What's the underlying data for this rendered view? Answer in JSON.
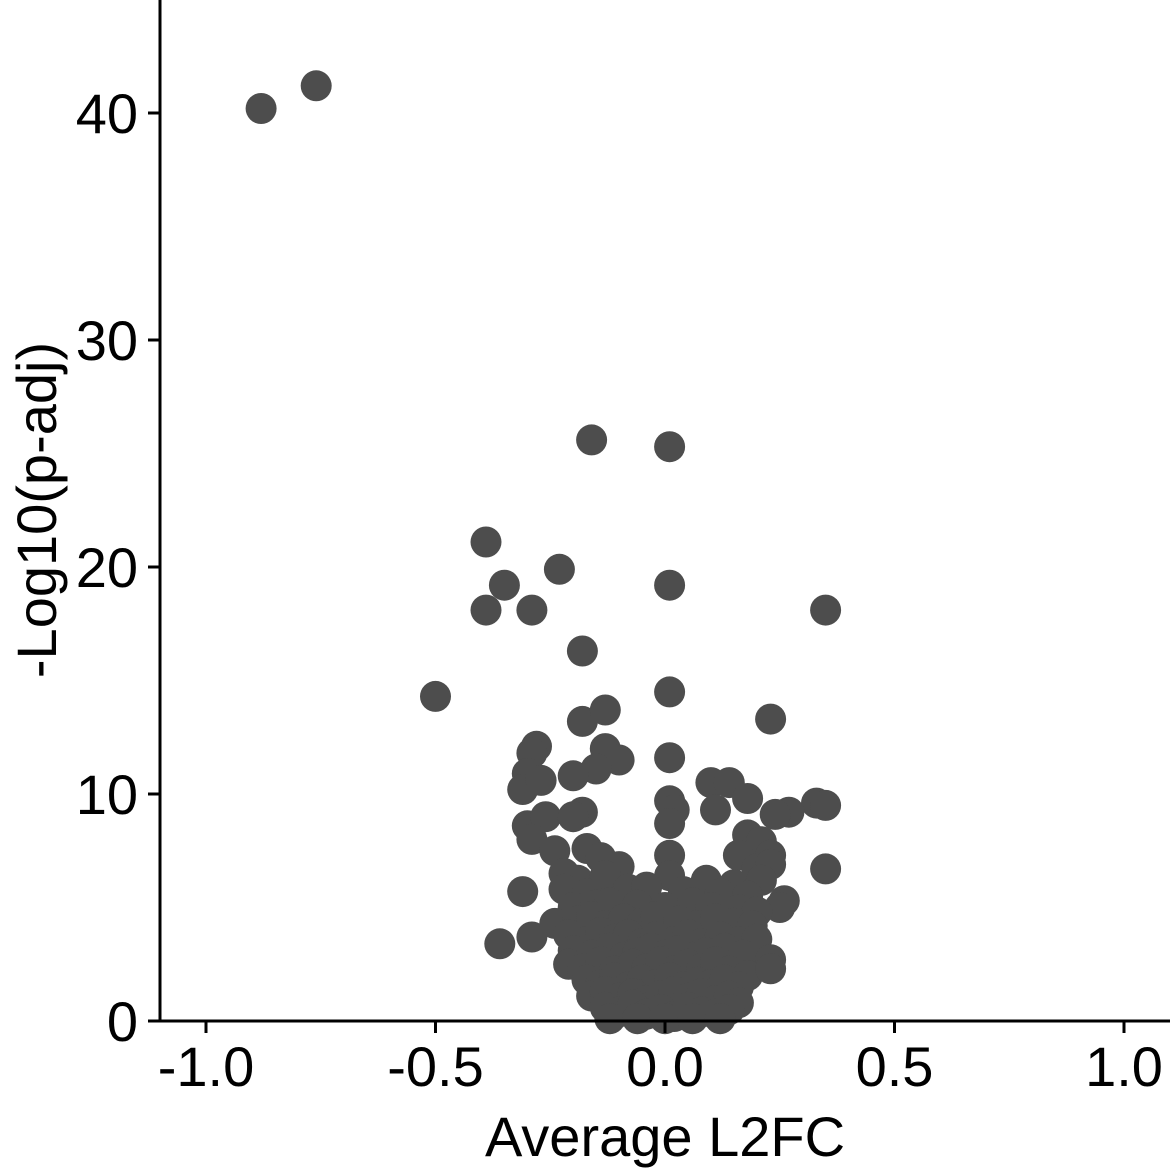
{
  "chart_data": {
    "type": "scatter",
    "title": "",
    "xlabel": "Average L2FC",
    "ylabel": "-Log10(p-adj)",
    "xlim": [
      -1.1,
      1.1
    ],
    "ylim": [
      0,
      45
    ],
    "xticks": [
      -1.0,
      -0.5,
      0.0,
      0.5,
      1.0
    ],
    "xtick_labels": [
      "-1.0",
      "-0.5",
      "0.0",
      "0.5",
      "1.0"
    ],
    "yticks": [
      0,
      10,
      20,
      30,
      40
    ],
    "ytick_labels": [
      "0",
      "10",
      "20",
      "30",
      "40"
    ],
    "grid": false,
    "legend": "none",
    "point_color": "#4d4d4d",
    "axis_color": "#000000",
    "series": [
      {
        "points": [
          [
            -0.88,
            40.2
          ],
          [
            -0.76,
            41.2
          ],
          [
            -0.16,
            25.6
          ],
          [
            0.01,
            25.3
          ],
          [
            -0.39,
            21.1
          ],
          [
            -0.35,
            19.2
          ],
          [
            -0.23,
            19.9
          ],
          [
            -0.39,
            18.1
          ],
          [
            -0.29,
            18.1
          ],
          [
            0.01,
            19.2
          ],
          [
            0.35,
            18.1
          ],
          [
            -0.18,
            16.3
          ],
          [
            -0.5,
            14.3
          ],
          [
            0.01,
            14.5
          ],
          [
            0.23,
            13.3
          ],
          [
            -0.18,
            13.2
          ],
          [
            -0.13,
            13.7
          ],
          [
            -0.28,
            12.1
          ],
          [
            -0.29,
            11.8
          ],
          [
            -0.13,
            12.0
          ],
          [
            -0.1,
            11.5
          ],
          [
            -0.15,
            11.1
          ],
          [
            0.01,
            11.6
          ],
          [
            -0.2,
            10.8
          ],
          [
            -0.3,
            10.9
          ],
          [
            -0.31,
            10.2
          ],
          [
            -0.27,
            10.6
          ],
          [
            0.1,
            10.5
          ],
          [
            0.14,
            10.5
          ],
          [
            0.18,
            9.8
          ],
          [
            0.11,
            9.3
          ],
          [
            0.33,
            9.6
          ],
          [
            0.35,
            9.5
          ],
          [
            0.27,
            9.2
          ],
          [
            0.24,
            9.1
          ],
          [
            0.01,
            9.7
          ],
          [
            0.02,
            9.3
          ],
          [
            0.01,
            8.7
          ],
          [
            -0.3,
            8.6
          ],
          [
            -0.26,
            9.0
          ],
          [
            -0.18,
            9.2
          ],
          [
            -0.2,
            9.0
          ],
          [
            0.18,
            8.2
          ],
          [
            0.21,
            7.9
          ],
          [
            -0.29,
            8.0
          ],
          [
            -0.24,
            7.5
          ],
          [
            -0.17,
            7.6
          ],
          [
            -0.14,
            7.2
          ],
          [
            0.01,
            7.3
          ],
          [
            0.16,
            7.3
          ],
          [
            0.23,
            7.3
          ],
          [
            -0.1,
            6.8
          ],
          [
            0.35,
            6.7
          ],
          [
            0.2,
            6.7
          ],
          [
            0.23,
            6.9
          ],
          [
            -0.22,
            6.5
          ],
          [
            -0.19,
            6.2
          ],
          [
            -0.13,
            6.4
          ],
          [
            0.01,
            6.4
          ],
          [
            0.09,
            6.2
          ],
          [
            0.15,
            6.0
          ],
          [
            0.21,
            6.2
          ],
          [
            -0.31,
            5.7
          ],
          [
            -0.22,
            5.8
          ],
          [
            -0.17,
            5.6
          ],
          [
            -0.08,
            5.8
          ],
          [
            -0.04,
            5.9
          ],
          [
            0.04,
            5.7
          ],
          [
            0.12,
            5.6
          ],
          [
            0.18,
            5.5
          ],
          [
            0.26,
            5.3
          ],
          [
            0.25,
            5.0
          ],
          [
            -0.2,
            5.0
          ],
          [
            -0.15,
            5.1
          ],
          [
            -0.12,
            5.2
          ],
          [
            -0.06,
            5.1
          ],
          [
            0.0,
            5.0
          ],
          [
            0.06,
            5.2
          ],
          [
            0.1,
            5.0
          ],
          [
            0.16,
            4.9
          ],
          [
            0.2,
            4.8
          ],
          [
            -0.24,
            4.3
          ],
          [
            -0.19,
            4.4
          ],
          [
            -0.16,
            4.6
          ],
          [
            -0.13,
            4.2
          ],
          [
            -0.09,
            4.5
          ],
          [
            -0.05,
            4.3
          ],
          [
            -0.02,
            4.6
          ],
          [
            0.03,
            4.4
          ],
          [
            0.07,
            4.2
          ],
          [
            0.11,
            4.5
          ],
          [
            0.15,
            4.3
          ],
          [
            0.19,
            4.2
          ],
          [
            -0.29,
            3.7
          ],
          [
            -0.36,
            3.4
          ],
          [
            -0.21,
            3.8
          ],
          [
            -0.17,
            3.5
          ],
          [
            -0.14,
            3.9
          ],
          [
            -0.11,
            3.6
          ],
          [
            -0.08,
            3.8
          ],
          [
            -0.05,
            3.4
          ],
          [
            -0.02,
            3.7
          ],
          [
            0.02,
            3.5
          ],
          [
            0.05,
            3.8
          ],
          [
            0.08,
            3.4
          ],
          [
            0.12,
            3.7
          ],
          [
            0.16,
            3.5
          ],
          [
            0.2,
            3.6
          ],
          [
            -0.2,
            3.1
          ],
          [
            -0.16,
            2.9
          ],
          [
            -0.12,
            3.2
          ],
          [
            -0.09,
            2.8
          ],
          [
            -0.06,
            3.0
          ],
          [
            -0.03,
            3.2
          ],
          [
            0.0,
            2.9
          ],
          [
            0.03,
            3.1
          ],
          [
            0.06,
            2.8
          ],
          [
            0.09,
            3.0
          ],
          [
            0.13,
            3.2
          ],
          [
            0.17,
            2.9
          ],
          [
            0.23,
            2.7
          ],
          [
            -0.21,
            2.5
          ],
          [
            -0.18,
            2.3
          ],
          [
            -0.14,
            2.6
          ],
          [
            -0.11,
            2.2
          ],
          [
            -0.07,
            2.5
          ],
          [
            -0.04,
            2.3
          ],
          [
            -0.01,
            2.6
          ],
          [
            0.02,
            2.2
          ],
          [
            0.05,
            2.5
          ],
          [
            0.08,
            2.3
          ],
          [
            0.11,
            2.6
          ],
          [
            0.14,
            2.2
          ],
          [
            0.18,
            2.0
          ],
          [
            0.23,
            2.3
          ],
          [
            -0.17,
            1.8
          ],
          [
            -0.14,
            1.6
          ],
          [
            -0.11,
            1.9
          ],
          [
            -0.08,
            1.5
          ],
          [
            -0.05,
            1.8
          ],
          [
            -0.02,
            1.6
          ],
          [
            0.01,
            1.9
          ],
          [
            0.04,
            1.5
          ],
          [
            0.07,
            1.7
          ],
          [
            0.1,
            1.6
          ],
          [
            0.13,
            1.8
          ],
          [
            0.16,
            1.5
          ],
          [
            -0.16,
            1.1
          ],
          [
            -0.13,
            1.3
          ],
          [
            -0.1,
            1.0
          ],
          [
            -0.07,
            1.2
          ],
          [
            -0.04,
            0.9
          ],
          [
            -0.01,
            1.1
          ],
          [
            0.02,
            1.3
          ],
          [
            0.05,
            1.0
          ],
          [
            0.08,
            1.2
          ],
          [
            0.11,
            0.9
          ],
          [
            0.14,
            1.1
          ],
          [
            0.16,
            0.8
          ],
          [
            -0.13,
            0.6
          ],
          [
            -0.1,
            0.4
          ],
          [
            -0.07,
            0.7
          ],
          [
            -0.04,
            0.3
          ],
          [
            -0.01,
            0.5
          ],
          [
            0.02,
            0.2
          ],
          [
            0.05,
            0.6
          ],
          [
            0.08,
            0.4
          ],
          [
            0.11,
            0.3
          ],
          [
            0.14,
            0.5
          ],
          [
            -0.12,
            0.1
          ],
          [
            -0.06,
            0.1
          ],
          [
            0.0,
            0.1
          ],
          [
            0.06,
            0.1
          ],
          [
            0.12,
            0.1
          ]
        ]
      }
    ]
  }
}
